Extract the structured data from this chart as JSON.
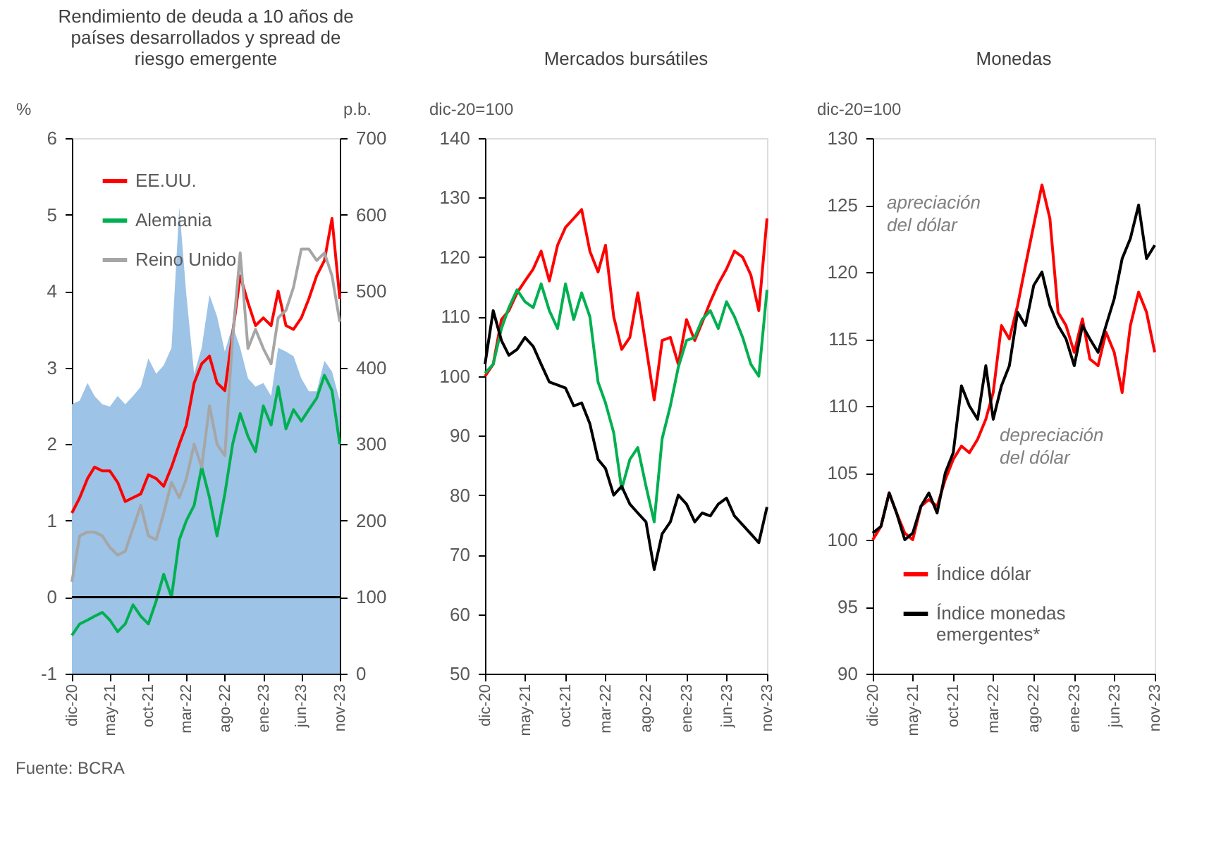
{
  "chart_data": [
    {
      "type": "line",
      "title": "Rendimiento de deuda a 10 años de países desarrollados y spread de riesgo emergente",
      "ylabel": "%",
      "y2label": "p.b.",
      "x": [
        "2020-12",
        "2021-01",
        "2021-02",
        "2021-03",
        "2021-04",
        "2021-05",
        "2021-06",
        "2021-07",
        "2021-08",
        "2021-09",
        "2021-10",
        "2021-11",
        "2021-12",
        "2022-01",
        "2022-02",
        "2022-03",
        "2022-04",
        "2022-05",
        "2022-06",
        "2022-07",
        "2022-08",
        "2022-09",
        "2022-10",
        "2022-11",
        "2022-12",
        "2023-01",
        "2023-02",
        "2023-03",
        "2023-04",
        "2023-05",
        "2023-06",
        "2023-07",
        "2023-08",
        "2023-09",
        "2023-10",
        "2023-11"
      ],
      "xlim": [
        "2020-12",
        "2023-11"
      ],
      "xticks": [
        {
          "value": "2020-12",
          "label": "dic-20"
        },
        {
          "value": "2021-05",
          "label": "may-21"
        },
        {
          "value": "2021-10",
          "label": "oct-21"
        },
        {
          "value": "2022-03",
          "label": "mar-22"
        },
        {
          "value": "2022-08",
          "label": "ago-22"
        },
        {
          "value": "2023-01",
          "label": "ene-23"
        },
        {
          "value": "2023-06",
          "label": "jun-23"
        },
        {
          "value": "2023-11",
          "label": "nov-23"
        }
      ],
      "ylim": [
        -1,
        6
      ],
      "yticks": [
        -1,
        0,
        1,
        2,
        3,
        4,
        5,
        6
      ],
      "y2lim": [
        0,
        700
      ],
      "y2ticks": [
        0,
        100,
        200,
        300,
        400,
        500,
        600,
        700
      ],
      "legend": "top left",
      "ref_lines": [
        {
          "axis": "y",
          "value": 0,
          "color": "#000000"
        }
      ],
      "annotations": [
        "Fuente: BCRA"
      ],
      "series": [
        {
          "type": "area",
          "axis": "y2",
          "color": "#9dc3e6",
          "values": [
            352,
            357,
            380,
            363,
            352,
            349,
            363,
            352,
            363,
            375,
            412,
            392,
            403,
            426,
            610,
            495,
            392,
            426,
            495,
            467,
            421,
            455,
            426,
            386,
            375,
            380,
            363,
            426,
            421,
            415,
            386,
            369,
            369,
            409,
            395,
            357
          ]
        },
        {
          "name": "EE.UU.",
          "color": "#ff0000",
          "values": [
            1.1,
            1.3,
            1.55,
            1.7,
            1.65,
            1.65,
            1.5,
            1.25,
            1.3,
            1.35,
            1.6,
            1.55,
            1.45,
            1.7,
            2.0,
            2.25,
            2.8,
            3.05,
            3.15,
            2.8,
            2.7,
            3.45,
            4.2,
            3.85,
            3.55,
            3.65,
            3.55,
            4.0,
            3.55,
            3.5,
            3.65,
            3.9,
            4.2,
            4.4,
            4.95,
            3.9
          ]
        },
        {
          "name": "Alemania",
          "color": "#00b050",
          "values": [
            -0.5,
            -0.35,
            -0.3,
            -0.25,
            -0.2,
            -0.3,
            -0.45,
            -0.35,
            -0.1,
            -0.25,
            -0.35,
            -0.05,
            0.3,
            0.0,
            0.75,
            1.0,
            1.2,
            1.7,
            1.3,
            0.8,
            1.35,
            2.0,
            2.4,
            2.1,
            1.9,
            2.5,
            2.25,
            2.75,
            2.2,
            2.45,
            2.3,
            2.45,
            2.6,
            2.9,
            2.7,
            2.0
          ]
        },
        {
          "name": "Reino Unido",
          "color": "#a6a6a6",
          "values": [
            0.2,
            0.8,
            0.85,
            0.85,
            0.8,
            0.65,
            0.55,
            0.6,
            0.9,
            1.2,
            0.8,
            0.75,
            1.1,
            1.5,
            1.3,
            1.55,
            2.0,
            1.7,
            2.5,
            2.0,
            1.85,
            3.4,
            4.5,
            3.25,
            3.5,
            3.25,
            3.05,
            3.65,
            3.75,
            4.05,
            4.55,
            4.55,
            4.4,
            4.5,
            4.2,
            3.6
          ]
        }
      ]
    },
    {
      "type": "line",
      "title": "Mercados bursátiles",
      "ylabel": "dic-20=100",
      "x": [
        "2020-12",
        "2021-01",
        "2021-02",
        "2021-03",
        "2021-04",
        "2021-05",
        "2021-06",
        "2021-07",
        "2021-08",
        "2021-09",
        "2021-10",
        "2021-11",
        "2021-12",
        "2022-01",
        "2022-02",
        "2022-03",
        "2022-04",
        "2022-05",
        "2022-06",
        "2022-07",
        "2022-08",
        "2022-09",
        "2022-10",
        "2022-11",
        "2022-12",
        "2023-01",
        "2023-02",
        "2023-03",
        "2023-04",
        "2023-05",
        "2023-06",
        "2023-07",
        "2023-08",
        "2023-09",
        "2023-10",
        "2023-11"
      ],
      "xlim": [
        "2020-12",
        "2023-11"
      ],
      "xticks": [
        {
          "value": "2020-12",
          "label": "dic-20"
        },
        {
          "value": "2021-05",
          "label": "may-21"
        },
        {
          "value": "2021-10",
          "label": "oct-21"
        },
        {
          "value": "2022-03",
          "label": "mar-22"
        },
        {
          "value": "2022-08",
          "label": "ago-22"
        },
        {
          "value": "2023-01",
          "label": "ene-23"
        },
        {
          "value": "2023-06",
          "label": "jun-23"
        },
        {
          "value": "2023-11",
          "label": "nov-23"
        }
      ],
      "ylim": [
        50,
        140
      ],
      "yticks": [
        50,
        60,
        70,
        80,
        90,
        100,
        110,
        120,
        130,
        140
      ],
      "series": [
        {
          "color": "#ff0000",
          "values": [
            100,
            102,
            109.5,
            111,
            114,
            116,
            118,
            121,
            116,
            122,
            125,
            126.5,
            128,
            121,
            117.5,
            122,
            110,
            104.5,
            106.5,
            114,
            105,
            96,
            106,
            106.5,
            102,
            109.5,
            106,
            109,
            112.5,
            115.5,
            118,
            121,
            120,
            117,
            111,
            126.5
          ]
        },
        {
          "color": "#00b050",
          "values": [
            100.5,
            102,
            108,
            111.5,
            114.5,
            112.5,
            111.5,
            115.5,
            111,
            108,
            115.5,
            109.5,
            114,
            110,
            99,
            95.5,
            90.5,
            81,
            86,
            88,
            81.5,
            75.5,
            89.5,
            95,
            101.5,
            106,
            106.5,
            109.5,
            111,
            108,
            112.5,
            110,
            106.5,
            102,
            100,
            114.5
          ]
        },
        {
          "color": "#000000",
          "values": [
            102,
            111,
            106,
            103.5,
            104.5,
            106.5,
            105,
            102,
            99,
            98.5,
            98,
            95,
            95.5,
            92,
            86,
            84.5,
            80,
            81.5,
            78.5,
            77,
            75.5,
            67.5,
            73.5,
            75.5,
            80,
            78.5,
            75.5,
            77,
            76.5,
            78.5,
            79.5,
            76.5,
            75,
            73.5,
            72,
            78
          ]
        }
      ]
    },
    {
      "type": "line",
      "title": "Monedas",
      "ylabel": "dic-20=100",
      "legend": "bottom left",
      "x": [
        "2020-12",
        "2021-01",
        "2021-02",
        "2021-03",
        "2021-04",
        "2021-05",
        "2021-06",
        "2021-07",
        "2021-08",
        "2021-09",
        "2021-10",
        "2021-11",
        "2021-12",
        "2022-01",
        "2022-02",
        "2022-03",
        "2022-04",
        "2022-05",
        "2022-06",
        "2022-07",
        "2022-08",
        "2022-09",
        "2022-10",
        "2022-11",
        "2022-12",
        "2023-01",
        "2023-02",
        "2023-03",
        "2023-04",
        "2023-05",
        "2023-06",
        "2023-07",
        "2023-08",
        "2023-09",
        "2023-10",
        "2023-11"
      ],
      "xlim": [
        "2020-12",
        "2023-11"
      ],
      "xticks": [
        {
          "value": "2020-12",
          "label": "dic-20"
        },
        {
          "value": "2021-05",
          "label": "may-21"
        },
        {
          "value": "2021-10",
          "label": "oct-21"
        },
        {
          "value": "2022-03",
          "label": "mar-22"
        },
        {
          "value": "2022-08",
          "label": "ago-22"
        },
        {
          "value": "2023-01",
          "label": "ene-23"
        },
        {
          "value": "2023-06",
          "label": "jun-23"
        },
        {
          "value": "2023-11",
          "label": "nov-23"
        }
      ],
      "ylim": [
        90,
        130
      ],
      "yticks": [
        90,
        95,
        100,
        105,
        110,
        115,
        120,
        125,
        130
      ],
      "annotations": [
        "apreciación del dólar",
        "depreciación del dólar"
      ],
      "series": [
        {
          "name": "Índice dólar",
          "color": "#ff0000",
          "values": [
            100,
            101,
            103.5,
            102,
            100.5,
            100,
            102.5,
            103,
            102.5,
            104.5,
            106,
            107,
            106.5,
            107.5,
            109,
            111,
            116,
            115,
            117.5,
            120.5,
            123.5,
            126.5,
            124,
            117,
            116,
            114,
            116.5,
            113.5,
            113,
            115.5,
            114,
            111,
            116,
            118.5,
            117,
            114
          ]
        },
        {
          "name": "Índice monedas emergentes*",
          "color": "#000000",
          "values": [
            100.5,
            101,
            103.5,
            102,
            100,
            100.5,
            102.5,
            103.5,
            102,
            105,
            106.5,
            111.5,
            110,
            109,
            113,
            109,
            111.5,
            113,
            117,
            116,
            119,
            120,
            117.5,
            116,
            115,
            113,
            116,
            115,
            114,
            116,
            118,
            121,
            122.5,
            125,
            121,
            122
          ]
        }
      ]
    }
  ]
}
